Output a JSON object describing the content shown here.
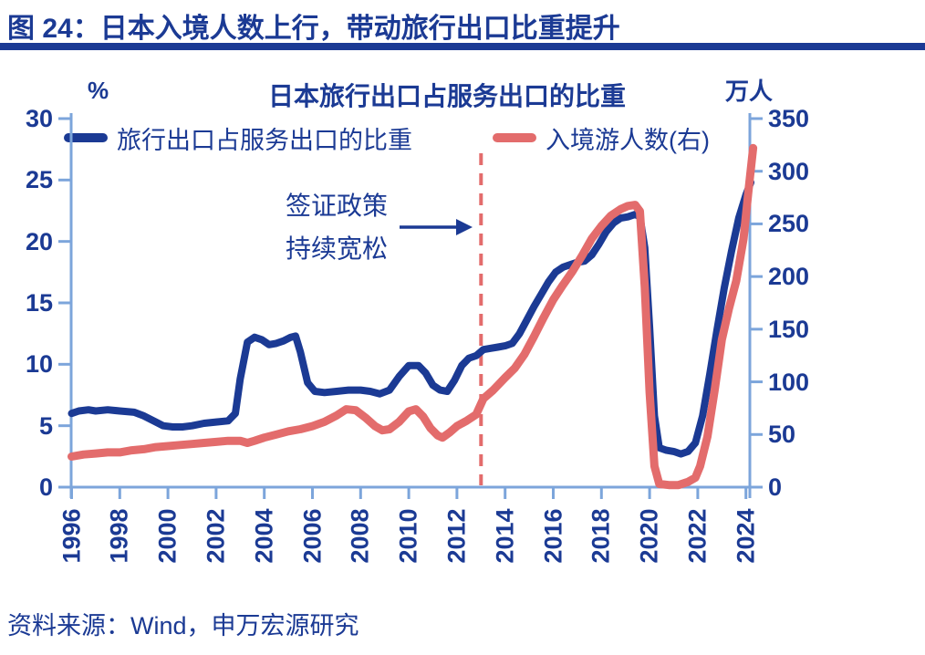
{
  "header": {
    "title": "图 24：日本入境人数上行，带动旅行出口比重提升"
  },
  "chart": {
    "title": "日本旅行出口占服务出口的比重",
    "left_axis_unit": "%",
    "right_axis_unit": "万人",
    "legend": [
      {
        "label": "旅行出口占服务出口的比重",
        "color": "#1B3A94"
      },
      {
        "label": "入境游人数(右)",
        "color": "#E36C6C"
      }
    ],
    "annotation": {
      "line1": "签证政策",
      "line2": "持续宽松"
    }
  },
  "colors": {
    "navy": "#1B3A94",
    "salmon": "#E36C6C",
    "axis": "#7CA5DB"
  },
  "source": {
    "text": "资料来源：Wind，申万宏源研究"
  },
  "chart_data": {
    "type": "line",
    "title": "日本旅行出口占服务出口的比重",
    "xlabel": "",
    "left_ylabel": "%",
    "right_ylabel": "万人",
    "left_ylim": [
      0,
      30
    ],
    "right_ylim": [
      0,
      350
    ],
    "xlim": [
      1996,
      2024.5
    ],
    "left_ticks": [
      0,
      5,
      10,
      15,
      20,
      25,
      30
    ],
    "right_ticks": [
      0,
      50,
      100,
      150,
      200,
      250,
      300,
      350
    ],
    "x_ticks": [
      1996,
      1998,
      2000,
      2002,
      2004,
      2006,
      2008,
      2010,
      2012,
      2014,
      2016,
      2018,
      2020,
      2022,
      2024
    ],
    "vline_year": 2013,
    "vline_label": "签证政策持续宽松",
    "grid": false,
    "legend_position": "top",
    "series": [
      {
        "name": "旅行出口占服务出口的比重",
        "axis": "left",
        "unit": "%",
        "color": "#1B3A94",
        "points": [
          [
            1996.0,
            6.0
          ],
          [
            1996.3,
            6.2
          ],
          [
            1996.7,
            6.3
          ],
          [
            1997.0,
            6.2
          ],
          [
            1997.5,
            6.3
          ],
          [
            1998.0,
            6.2
          ],
          [
            1998.6,
            6.1
          ],
          [
            1999.0,
            5.8
          ],
          [
            1999.4,
            5.4
          ],
          [
            1999.8,
            5.0
          ],
          [
            2000.2,
            4.9
          ],
          [
            2000.6,
            4.9
          ],
          [
            2001.0,
            5.0
          ],
          [
            2001.5,
            5.2
          ],
          [
            2002.0,
            5.3
          ],
          [
            2002.5,
            5.4
          ],
          [
            2002.8,
            6.0
          ],
          [
            2003.0,
            8.8
          ],
          [
            2003.3,
            11.8
          ],
          [
            2003.6,
            12.2
          ],
          [
            2003.9,
            12.0
          ],
          [
            2004.2,
            11.6
          ],
          [
            2004.5,
            11.7
          ],
          [
            2004.8,
            11.9
          ],
          [
            2005.1,
            12.2
          ],
          [
            2005.3,
            12.3
          ],
          [
            2005.5,
            11.0
          ],
          [
            2005.8,
            8.5
          ],
          [
            2006.1,
            7.8
          ],
          [
            2006.5,
            7.7
          ],
          [
            2007.0,
            7.8
          ],
          [
            2007.5,
            7.9
          ],
          [
            2008.0,
            7.9
          ],
          [
            2008.4,
            7.8
          ],
          [
            2008.8,
            7.6
          ],
          [
            2009.2,
            7.9
          ],
          [
            2009.6,
            9.0
          ],
          [
            2010.0,
            9.9
          ],
          [
            2010.4,
            9.9
          ],
          [
            2010.7,
            9.3
          ],
          [
            2011.0,
            8.3
          ],
          [
            2011.3,
            7.9
          ],
          [
            2011.6,
            7.8
          ],
          [
            2011.9,
            8.7
          ],
          [
            2012.2,
            9.9
          ],
          [
            2012.5,
            10.5
          ],
          [
            2012.8,
            10.7
          ],
          [
            2013.1,
            11.2
          ],
          [
            2013.4,
            11.3
          ],
          [
            2013.7,
            11.4
          ],
          [
            2014.0,
            11.5
          ],
          [
            2014.3,
            11.7
          ],
          [
            2014.6,
            12.5
          ],
          [
            2014.9,
            13.6
          ],
          [
            2015.2,
            14.7
          ],
          [
            2015.5,
            15.7
          ],
          [
            2015.8,
            16.7
          ],
          [
            2016.1,
            17.5
          ],
          [
            2016.4,
            17.9
          ],
          [
            2016.7,
            18.1
          ],
          [
            2017.0,
            18.3
          ],
          [
            2017.3,
            18.4
          ],
          [
            2017.6,
            18.9
          ],
          [
            2017.9,
            19.8
          ],
          [
            2018.2,
            20.8
          ],
          [
            2018.5,
            21.5
          ],
          [
            2018.8,
            21.9
          ],
          [
            2019.1,
            22.0
          ],
          [
            2019.4,
            22.2
          ],
          [
            2019.6,
            22.0
          ],
          [
            2019.8,
            19.5
          ],
          [
            2020.0,
            13.0
          ],
          [
            2020.2,
            5.8
          ],
          [
            2020.4,
            3.2
          ],
          [
            2020.7,
            3.0
          ],
          [
            2021.0,
            2.9
          ],
          [
            2021.3,
            2.7
          ],
          [
            2021.6,
            2.9
          ],
          [
            2021.9,
            3.6
          ],
          [
            2022.2,
            5.8
          ],
          [
            2022.5,
            9.2
          ],
          [
            2022.8,
            12.8
          ],
          [
            2023.1,
            16.2
          ],
          [
            2023.4,
            19.2
          ],
          [
            2023.7,
            21.9
          ],
          [
            2024.0,
            23.8
          ],
          [
            2024.2,
            24.8
          ]
        ]
      },
      {
        "name": "入境游人数(右)",
        "axis": "right",
        "unit": "万人",
        "color": "#E36C6C",
        "points": [
          [
            1996.0,
            29
          ],
          [
            1996.5,
            31
          ],
          [
            1997.0,
            32
          ],
          [
            1997.5,
            33
          ],
          [
            1998.0,
            33
          ],
          [
            1998.5,
            35
          ],
          [
            1999.0,
            36
          ],
          [
            1999.5,
            38
          ],
          [
            2000.0,
            39
          ],
          [
            2000.5,
            40
          ],
          [
            2001.0,
            41
          ],
          [
            2001.5,
            42
          ],
          [
            2002.0,
            43
          ],
          [
            2002.5,
            44
          ],
          [
            2003.0,
            44
          ],
          [
            2003.3,
            42
          ],
          [
            2003.6,
            44
          ],
          [
            2004.0,
            47
          ],
          [
            2004.5,
            50
          ],
          [
            2005.0,
            53
          ],
          [
            2005.5,
            55
          ],
          [
            2006.0,
            58
          ],
          [
            2006.5,
            62
          ],
          [
            2007.0,
            68
          ],
          [
            2007.4,
            74
          ],
          [
            2007.8,
            73
          ],
          [
            2008.2,
            66
          ],
          [
            2008.6,
            58
          ],
          [
            2008.9,
            54
          ],
          [
            2009.2,
            55
          ],
          [
            2009.6,
            62
          ],
          [
            2010.0,
            72
          ],
          [
            2010.3,
            74
          ],
          [
            2010.6,
            67
          ],
          [
            2010.9,
            56
          ],
          [
            2011.2,
            49
          ],
          [
            2011.4,
            47
          ],
          [
            2011.7,
            52
          ],
          [
            2012.0,
            58
          ],
          [
            2012.4,
            63
          ],
          [
            2012.8,
            69
          ],
          [
            2013.1,
            84
          ],
          [
            2013.5,
            92
          ],
          [
            2014.0,
            104
          ],
          [
            2014.4,
            113
          ],
          [
            2014.8,
            126
          ],
          [
            2015.2,
            143
          ],
          [
            2015.6,
            161
          ],
          [
            2016.0,
            178
          ],
          [
            2016.4,
            192
          ],
          [
            2016.8,
            205
          ],
          [
            2017.2,
            220
          ],
          [
            2017.6,
            236
          ],
          [
            2018.0,
            248
          ],
          [
            2018.4,
            258
          ],
          [
            2018.8,
            264
          ],
          [
            2019.1,
            267
          ],
          [
            2019.4,
            268
          ],
          [
            2019.6,
            262
          ],
          [
            2019.8,
            190
          ],
          [
            2020.0,
            90
          ],
          [
            2020.2,
            20
          ],
          [
            2020.4,
            3
          ],
          [
            2020.8,
            2
          ],
          [
            2021.2,
            2
          ],
          [
            2021.6,
            5
          ],
          [
            2021.9,
            9
          ],
          [
            2022.1,
            20
          ],
          [
            2022.4,
            48
          ],
          [
            2022.7,
            92
          ],
          [
            2023.0,
            140
          ],
          [
            2023.3,
            170
          ],
          [
            2023.6,
            196
          ],
          [
            2023.9,
            236
          ],
          [
            2024.1,
            280
          ],
          [
            2024.3,
            322
          ]
        ]
      }
    ]
  }
}
